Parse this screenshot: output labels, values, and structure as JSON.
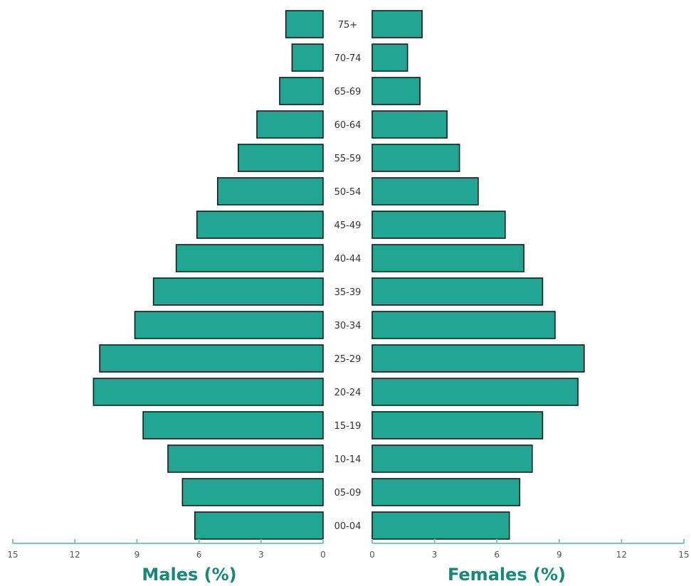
{
  "chart_data": {
    "type": "bar",
    "orientation": "horizontal",
    "layout": "population-pyramid",
    "categories": [
      "00-04",
      "05-09",
      "10-14",
      "15-19",
      "20-24",
      "25-29",
      "30-34",
      "35-39",
      "40-44",
      "45-49",
      "50-54",
      "55-59",
      "60-64",
      "65-69",
      "70-74",
      "75+"
    ],
    "series": [
      {
        "name": "Males (%)",
        "values": [
          6.2,
          6.8,
          7.5,
          8.7,
          11.1,
          10.8,
          9.1,
          8.2,
          7.1,
          6.1,
          5.1,
          4.1,
          3.2,
          2.1,
          1.5,
          1.8
        ]
      },
      {
        "name": "Females (%)",
        "values": [
          6.6,
          7.1,
          7.7,
          8.2,
          9.9,
          10.2,
          8.8,
          8.2,
          7.3,
          6.4,
          5.1,
          4.2,
          3.6,
          2.3,
          1.7,
          2.4
        ]
      }
    ],
    "xlabel_left": "Males (%)",
    "xlabel_right": "Females (%)",
    "xlim": [
      0,
      15
    ],
    "xticks": [
      0,
      3,
      6,
      9,
      12,
      15
    ],
    "grid": false,
    "colors": {
      "bar_fill": "#22a592",
      "bar_stroke": "#1a1a1a",
      "axis": "#7cc7bb",
      "axis_title": "#16897a"
    }
  }
}
